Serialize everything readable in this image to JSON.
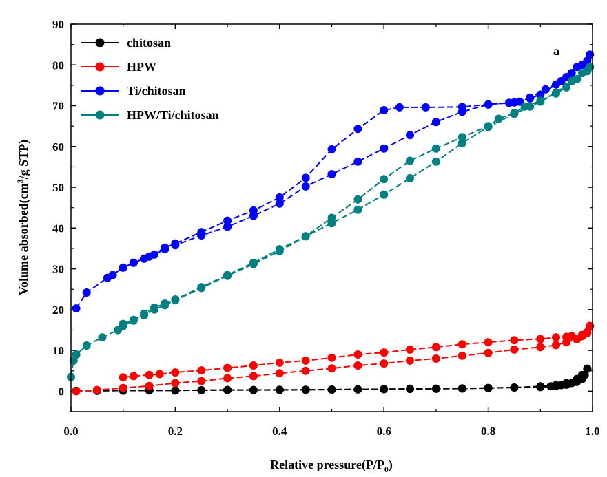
{
  "chart_data": {
    "type": "line",
    "annotation": "a",
    "xlabel": "Relative pressure(P/P",
    "xlabel_sub": "0",
    "xlabel_end": ")",
    "ylabel": "Volume absorbed(cm",
    "ylabel_sup": "3",
    "ylabel_end": "/g STP)",
    "xlim": [
      0.0,
      1.0
    ],
    "ylim": [
      -5,
      90
    ],
    "x_ticks": [
      "0.0",
      "0.2",
      "0.4",
      "0.6",
      "0.8",
      "1.0"
    ],
    "y_ticks": [
      "0",
      "10",
      "20",
      "30",
      "40",
      "50",
      "60",
      "70",
      "80",
      "90"
    ],
    "legend_position": "top-left",
    "series": [
      {
        "name": "chitosan",
        "color": "#000000",
        "adsorption": [
          [
            0.01,
            0.1
          ],
          [
            0.05,
            0.1
          ],
          [
            0.1,
            0.15
          ],
          [
            0.15,
            0.2
          ],
          [
            0.2,
            0.2
          ],
          [
            0.25,
            0.25
          ],
          [
            0.3,
            0.3
          ],
          [
            0.35,
            0.3
          ],
          [
            0.4,
            0.35
          ],
          [
            0.45,
            0.35
          ],
          [
            0.5,
            0.4
          ],
          [
            0.55,
            0.45
          ],
          [
            0.6,
            0.5
          ],
          [
            0.65,
            0.55
          ],
          [
            0.7,
            0.6
          ],
          [
            0.75,
            0.65
          ],
          [
            0.8,
            0.75
          ],
          [
            0.85,
            0.9
          ],
          [
            0.9,
            1.0
          ],
          [
            0.92,
            1.2
          ],
          [
            0.93,
            1.3
          ],
          [
            0.94,
            1.5
          ],
          [
            0.95,
            1.6
          ],
          [
            0.96,
            2.0
          ],
          [
            0.97,
            2.3
          ],
          [
            0.98,
            3.0
          ],
          [
            0.985,
            4.0
          ],
          [
            0.99,
            5.5
          ]
        ],
        "desorption": [
          [
            0.99,
            5.5
          ],
          [
            0.98,
            4.0
          ],
          [
            0.97,
            3.0
          ],
          [
            0.95,
            2.0
          ],
          [
            0.93,
            1.5
          ],
          [
            0.9,
            1.2
          ],
          [
            0.85,
            0.9
          ],
          [
            0.8,
            0.8
          ],
          [
            0.75,
            0.7
          ],
          [
            0.7,
            0.6
          ],
          [
            0.65,
            0.6
          ],
          [
            0.6,
            0.5
          ],
          [
            0.55,
            0.45
          ],
          [
            0.5,
            0.4
          ],
          [
            0.45,
            0.35
          ],
          [
            0.4,
            0.3
          ],
          [
            0.3,
            0.3
          ],
          [
            0.2,
            0.2
          ],
          [
            0.1,
            0.15
          ],
          [
            0.05,
            0.1
          ]
        ]
      },
      {
        "name": "HPW",
        "color": "#ff0000",
        "adsorption": [
          [
            0.01,
            0.0
          ],
          [
            0.05,
            0.3
          ],
          [
            0.1,
            0.8
          ],
          [
            0.15,
            1.3
          ],
          [
            0.2,
            2.0
          ],
          [
            0.25,
            2.5
          ],
          [
            0.3,
            3.2
          ],
          [
            0.35,
            3.7
          ],
          [
            0.4,
            4.4
          ],
          [
            0.45,
            5.0
          ],
          [
            0.5,
            5.6
          ],
          [
            0.55,
            6.3
          ],
          [
            0.6,
            6.8
          ],
          [
            0.65,
            7.5
          ],
          [
            0.7,
            8.0
          ],
          [
            0.75,
            8.7
          ],
          [
            0.8,
            9.4
          ],
          [
            0.85,
            10.2
          ],
          [
            0.9,
            10.8
          ],
          [
            0.93,
            11.3
          ],
          [
            0.95,
            12.0
          ],
          [
            0.97,
            12.7
          ],
          [
            0.98,
            13.5
          ],
          [
            0.99,
            14.3
          ],
          [
            0.995,
            16.0
          ]
        ],
        "desorption": [
          [
            0.995,
            16.0
          ],
          [
            0.99,
            14.5
          ],
          [
            0.98,
            13.8
          ],
          [
            0.96,
            13.5
          ],
          [
            0.95,
            13.3
          ],
          [
            0.93,
            13.2
          ],
          [
            0.9,
            12.8
          ],
          [
            0.85,
            12.5
          ],
          [
            0.8,
            12.0
          ],
          [
            0.75,
            11.5
          ],
          [
            0.7,
            10.8
          ],
          [
            0.65,
            10.2
          ],
          [
            0.6,
            9.5
          ],
          [
            0.55,
            9.0
          ],
          [
            0.5,
            8.2
          ],
          [
            0.45,
            7.5
          ],
          [
            0.4,
            7.0
          ],
          [
            0.35,
            6.3
          ],
          [
            0.3,
            5.7
          ],
          [
            0.25,
            5.1
          ],
          [
            0.2,
            4.6
          ],
          [
            0.17,
            4.2
          ],
          [
            0.15,
            4.0
          ],
          [
            0.12,
            3.7
          ],
          [
            0.1,
            3.4
          ]
        ]
      },
      {
        "name": "Ti/chitosan",
        "color": "#0000ff",
        "adsorption": [
          [
            0.01,
            20.3
          ],
          [
            0.03,
            24.2
          ],
          [
            0.07,
            27.8
          ],
          [
            0.1,
            30.3
          ],
          [
            0.12,
            31.5
          ],
          [
            0.14,
            32.5
          ],
          [
            0.16,
            33.5
          ],
          [
            0.18,
            34.8
          ],
          [
            0.2,
            35.8
          ],
          [
            0.25,
            38.2
          ],
          [
            0.3,
            40.3
          ],
          [
            0.35,
            43.0
          ],
          [
            0.4,
            46.0
          ],
          [
            0.45,
            50.2
          ],
          [
            0.5,
            53.2
          ],
          [
            0.55,
            56.3
          ],
          [
            0.6,
            59.5
          ],
          [
            0.65,
            62.8
          ],
          [
            0.7,
            66.0
          ],
          [
            0.75,
            68.5
          ],
          [
            0.8,
            70.3
          ],
          [
            0.85,
            70.8
          ],
          [
            0.88,
            71.8
          ],
          [
            0.9,
            72.7
          ],
          [
            0.93,
            75.2
          ],
          [
            0.95,
            77.0
          ],
          [
            0.97,
            79.5
          ],
          [
            0.99,
            81.0
          ],
          [
            0.995,
            82.5
          ]
        ],
        "desorption": [
          [
            0.995,
            82.5
          ],
          [
            0.98,
            80.0
          ],
          [
            0.96,
            78.0
          ],
          [
            0.94,
            76.0
          ],
          [
            0.91,
            74.0
          ],
          [
            0.88,
            72.0
          ],
          [
            0.86,
            71.0
          ],
          [
            0.84,
            70.7
          ],
          [
            0.8,
            70.3
          ],
          [
            0.75,
            69.7
          ],
          [
            0.68,
            69.6
          ],
          [
            0.63,
            69.6
          ],
          [
            0.6,
            68.9
          ],
          [
            0.55,
            64.3
          ],
          [
            0.5,
            59.3
          ],
          [
            0.45,
            52.3
          ],
          [
            0.4,
            47.5
          ],
          [
            0.35,
            44.3
          ],
          [
            0.3,
            41.8
          ],
          [
            0.25,
            39.0
          ],
          [
            0.2,
            36.2
          ],
          [
            0.18,
            35.2
          ],
          [
            0.15,
            33.0
          ],
          [
            0.12,
            31.5
          ],
          [
            0.1,
            30.3
          ],
          [
            0.08,
            28.5
          ]
        ]
      },
      {
        "name": "HPW/Ti/chitosan",
        "color": "#008080",
        "adsorption": [
          [
            0.0,
            3.5
          ],
          [
            0.005,
            7.5
          ],
          [
            0.01,
            9.0
          ],
          [
            0.03,
            11.2
          ],
          [
            0.06,
            13.2
          ],
          [
            0.09,
            15.0
          ],
          [
            0.1,
            16.0
          ],
          [
            0.12,
            17.3
          ],
          [
            0.14,
            18.6
          ],
          [
            0.16,
            20.0
          ],
          [
            0.18,
            21.1
          ],
          [
            0.2,
            22.3
          ],
          [
            0.25,
            25.3
          ],
          [
            0.3,
            28.3
          ],
          [
            0.35,
            31.2
          ],
          [
            0.4,
            34.3
          ],
          [
            0.45,
            38.0
          ],
          [
            0.5,
            41.2
          ],
          [
            0.55,
            44.5
          ],
          [
            0.6,
            48.2
          ],
          [
            0.65,
            52.2
          ],
          [
            0.7,
            56.3
          ],
          [
            0.75,
            60.8
          ],
          [
            0.8,
            64.8
          ],
          [
            0.85,
            68.0
          ],
          [
            0.88,
            69.8
          ],
          [
            0.9,
            71.0
          ],
          [
            0.93,
            73.0
          ],
          [
            0.95,
            74.5
          ],
          [
            0.97,
            76.5
          ],
          [
            0.99,
            78.5
          ],
          [
            0.995,
            79.5
          ]
        ],
        "desorption": [
          [
            0.995,
            79.5
          ],
          [
            0.98,
            78.0
          ],
          [
            0.96,
            76.0
          ],
          [
            0.93,
            73.2
          ],
          [
            0.9,
            71.2
          ],
          [
            0.87,
            69.8
          ],
          [
            0.85,
            68.2
          ],
          [
            0.82,
            66.8
          ],
          [
            0.8,
            65.0
          ],
          [
            0.75,
            62.3
          ],
          [
            0.7,
            59.5
          ],
          [
            0.65,
            56.5
          ],
          [
            0.6,
            52.0
          ],
          [
            0.55,
            47.0
          ],
          [
            0.5,
            42.5
          ],
          [
            0.45,
            38.0
          ],
          [
            0.4,
            34.8
          ],
          [
            0.35,
            31.5
          ],
          [
            0.3,
            28.5
          ],
          [
            0.25,
            25.5
          ],
          [
            0.2,
            22.5
          ],
          [
            0.18,
            21.5
          ],
          [
            0.16,
            20.5
          ],
          [
            0.14,
            19.0
          ],
          [
            0.12,
            17.5
          ],
          [
            0.1,
            16.5
          ]
        ]
      }
    ]
  }
}
